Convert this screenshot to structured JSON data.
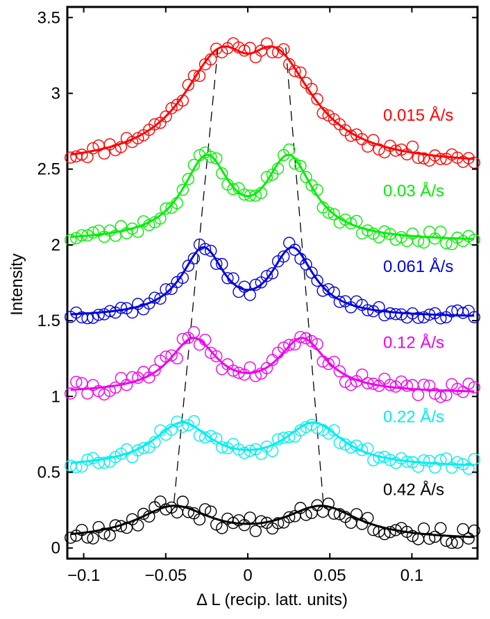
{
  "chart_data": {
    "type": "scatter",
    "title": "",
    "xlabel": "Δ L (recip. latt. units)",
    "ylabel": "Intensity",
    "xlim": [
      -0.11,
      0.14
    ],
    "ylim": [
      -0.07,
      3.57
    ],
    "xticks": [
      -0.1,
      -0.05,
      0,
      0.05,
      0.1
    ],
    "xtick_labels": [
      "−0.1",
      "−0.05",
      "0",
      "0.05",
      "0.1"
    ],
    "yticks": [
      0,
      0.5,
      1,
      1.5,
      2,
      2.5,
      3,
      3.5
    ],
    "ytick_labels": [
      "0",
      "0.5",
      "1",
      "1.5",
      "2",
      "2.5",
      "3",
      "3.5"
    ],
    "grid": false,
    "x_range": [
      -0.108,
      0.138
    ],
    "n_points": 73,
    "series": [
      {
        "name": "0.015 Å/s",
        "color": "#ff0000",
        "base": 2.52,
        "amp": 0.78,
        "center": 0.0,
        "peak_sep": 0.018,
        "width": 0.028,
        "split": 0.15,
        "noise": 0.04,
        "seed": 11
      },
      {
        "name": "0.03 Å/s",
        "color": "#00ee00",
        "base": 2.02,
        "amp": 0.58,
        "center": 0.0,
        "peak_sep": 0.025,
        "width": 0.018,
        "split": 0.3,
        "noise": 0.04,
        "seed": 23
      },
      {
        "name": "0.061 Å/s",
        "color": "#0000dd",
        "base": 1.52,
        "amp": 0.47,
        "center": 0.0,
        "peak_sep": 0.027,
        "width": 0.016,
        "split": 0.38,
        "noise": 0.035,
        "seed": 37
      },
      {
        "name": "0.12 Å/s",
        "color": "#ee00ee",
        "base": 1.02,
        "amp": 0.37,
        "center": 0.0,
        "peak_sep": 0.033,
        "width": 0.018,
        "split": 0.3,
        "noise": 0.05,
        "seed": 41
      },
      {
        "name": "0.22 Å/s",
        "color": "#00eeee",
        "base": 0.53,
        "amp": 0.3,
        "center": 0.0,
        "peak_sep": 0.04,
        "width": 0.022,
        "split": 0.2,
        "noise": 0.04,
        "seed": 53
      },
      {
        "name": "0.42 Å/s",
        "color": "#000000",
        "base": 0.05,
        "amp": 0.23,
        "center": 0.0,
        "peak_sep": 0.045,
        "width": 0.028,
        "split": 0.15,
        "noise": 0.05,
        "seed": 67
      }
    ],
    "peak_guides": {
      "left": [
        [
          -0.045,
          0.3
        ],
        [
          -0.018,
          3.32
        ]
      ],
      "right": [
        [
          0.046,
          0.3
        ],
        [
          0.023,
          3.32
        ]
      ]
    }
  }
}
